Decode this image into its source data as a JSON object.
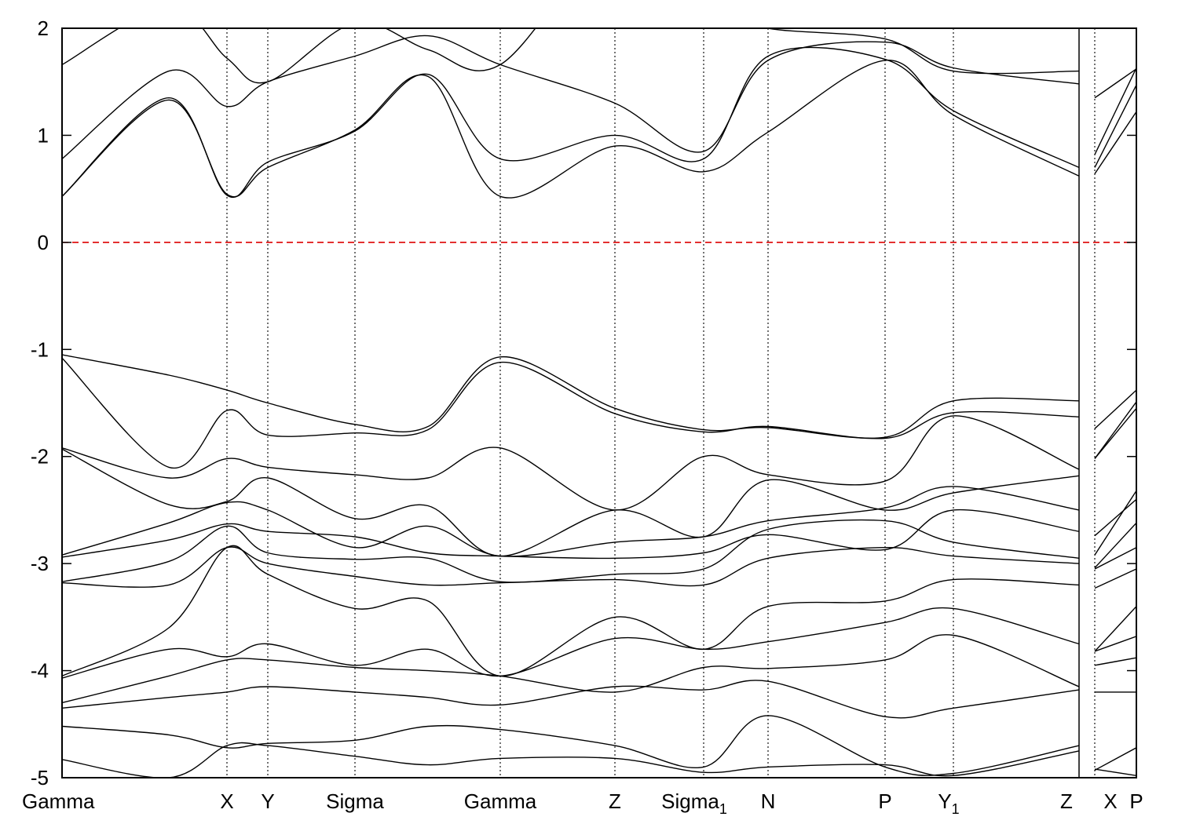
{
  "chart_data": {
    "type": "line",
    "title": "",
    "xlabel": "",
    "ylabel": "",
    "ylim": [
      -5,
      2
    ],
    "grid": false,
    "legend": "none",
    "y_ticks": [
      {
        "value": 2,
        "label": "2"
      },
      {
        "value": 1,
        "label": "1"
      },
      {
        "value": 0,
        "label": "0"
      },
      {
        "value": -1,
        "label": "-1"
      },
      {
        "value": -2,
        "label": "-2"
      },
      {
        "value": -3,
        "label": "-3"
      },
      {
        "value": -4,
        "label": "-4"
      },
      {
        "value": -5,
        "label": "-5"
      }
    ],
    "x_ticks": [
      {
        "id": "gamma1",
        "label": "Gamma",
        "sub": ""
      },
      {
        "id": "x1",
        "label": "X",
        "sub": ""
      },
      {
        "id": "y",
        "label": "Y",
        "sub": ""
      },
      {
        "id": "sigma",
        "label": "Sigma",
        "sub": ""
      },
      {
        "id": "gamma2",
        "label": "Gamma",
        "sub": ""
      },
      {
        "id": "z1",
        "label": "Z",
        "sub": ""
      },
      {
        "id": "sigma1",
        "label": "Sigma",
        "sub": "1"
      },
      {
        "id": "n",
        "label": "N",
        "sub": ""
      },
      {
        "id": "p1",
        "label": "P",
        "sub": ""
      },
      {
        "id": "y1",
        "label": "Y",
        "sub": "1"
      },
      {
        "id": "z2",
        "label": "Z",
        "sub": ""
      },
      {
        "id": "x2",
        "label": "X",
        "sub": ""
      },
      {
        "id": "p2",
        "label": "P",
        "sub": ""
      }
    ],
    "fermi_level": {
      "value": 0,
      "color": "#dd0000",
      "style": "dashed"
    },
    "line_color": "#000000",
    "series": [
      {
        "y": [
          1.66,
          2.2,
          1.72,
          1.5,
          2.05,
          1.8,
          1.66,
          2.8,
          2.2,
          2.0,
          1.9,
          1.6,
          1.6,
          1.35,
          1.62
        ]
      },
      {
        "y": [
          0.78,
          1.6,
          1.27,
          1.5,
          1.74,
          1.93,
          1.66,
          1.3,
          0.85,
          1.7,
          1.87,
          1.63,
          1.48,
          0.82,
          1.63
        ]
      },
      {
        "y": [
          0.43,
          1.35,
          0.44,
          0.75,
          1.04,
          1.57,
          0.78,
          1.0,
          0.78,
          1.74,
          1.71,
          1.23,
          0.7,
          0.7,
          1.47
        ]
      },
      {
        "y": [
          0.43,
          1.33,
          0.45,
          0.7,
          1.05,
          1.55,
          0.43,
          0.9,
          0.66,
          1.03,
          1.7,
          1.19,
          0.62,
          0.64,
          1.22
        ]
      },
      {
        "y": [
          -1.05,
          -1.24,
          -1.38,
          -1.5,
          -1.7,
          -1.72,
          -1.07,
          -1.55,
          -1.75,
          -1.73,
          -1.82,
          -1.48,
          -1.48,
          -1.74,
          -1.38
        ]
      },
      {
        "y": [
          -1.08,
          -2.1,
          -1.57,
          -1.8,
          -1.78,
          -1.75,
          -1.12,
          -1.6,
          -1.77,
          -1.72,
          -1.83,
          -1.59,
          -1.63,
          -2.02,
          -1.49
        ]
      },
      {
        "y": [
          -1.92,
          -2.2,
          -2.02,
          -2.1,
          -2.17,
          -2.2,
          -1.92,
          -2.5,
          -2.0,
          -2.17,
          -2.23,
          -1.62,
          -2.12,
          -2.02,
          -1.55
        ]
      },
      {
        "y": [
          -1.93,
          -2.45,
          -2.42,
          -2.2,
          -2.58,
          -2.46,
          -2.93,
          -2.5,
          -2.75,
          -2.22,
          -2.5,
          -2.34,
          -2.18,
          -2.74,
          -2.4
        ]
      },
      {
        "y": [
          -2.92,
          -2.62,
          -2.43,
          -2.5,
          -2.85,
          -2.65,
          -2.93,
          -2.8,
          -2.75,
          -2.6,
          -2.48,
          -2.28,
          -2.5,
          -2.92,
          -2.32
        ]
      },
      {
        "y": [
          -2.94,
          -2.78,
          -2.63,
          -2.7,
          -2.75,
          -2.9,
          -2.93,
          -2.95,
          -2.9,
          -2.73,
          -2.87,
          -2.5,
          -2.7,
          -3.04,
          -2.62
        ]
      },
      {
        "y": [
          -3.17,
          -2.98,
          -2.65,
          -2.9,
          -2.96,
          -2.95,
          -3.17,
          -3.1,
          -3.05,
          -2.68,
          -2.6,
          -2.8,
          -2.95,
          -3.05,
          -2.85
        ]
      },
      {
        "y": [
          -3.18,
          -3.2,
          -2.85,
          -3.0,
          -3.12,
          -3.2,
          -3.18,
          -3.15,
          -3.2,
          -2.95,
          -2.85,
          -2.93,
          -3.0,
          -3.23,
          -3.05
        ]
      },
      {
        "y": [
          -4.05,
          -3.6,
          -2.85,
          -3.1,
          -3.42,
          -3.35,
          -4.05,
          -3.5,
          -3.8,
          -3.4,
          -3.35,
          -3.15,
          -3.2,
          -3.82,
          -3.4
        ]
      },
      {
        "y": [
          -4.07,
          -3.8,
          -3.87,
          -3.75,
          -3.95,
          -3.8,
          -4.05,
          -3.7,
          -3.8,
          -3.73,
          -3.55,
          -3.42,
          -3.75,
          -3.82,
          -3.68
        ]
      },
      {
        "y": [
          -4.3,
          -4.05,
          -3.9,
          -3.9,
          -3.97,
          -4.0,
          -4.05,
          -4.2,
          -3.97,
          -3.98,
          -3.9,
          -3.67,
          -4.15,
          -3.95,
          -3.88
        ]
      },
      {
        "y": [
          -4.35,
          -4.25,
          -4.2,
          -4.15,
          -4.2,
          -4.25,
          -4.32,
          -4.15,
          -4.18,
          -4.1,
          -4.43,
          -4.35,
          -4.18,
          -4.2,
          -4.2
        ]
      },
      {
        "y": [
          -4.52,
          -4.6,
          -4.72,
          -4.68,
          -4.65,
          -4.52,
          -4.55,
          -4.7,
          -4.9,
          -4.42,
          -4.9,
          -4.96,
          -4.7,
          -4.93,
          -4.72
        ]
      },
      {
        "y": [
          -4.83,
          -5.0,
          -4.7,
          -4.7,
          -4.8,
          -4.88,
          -4.82,
          -4.82,
          -4.95,
          -4.9,
          -4.88,
          -4.98,
          -4.75,
          -4.92,
          -4.98
        ]
      }
    ]
  }
}
